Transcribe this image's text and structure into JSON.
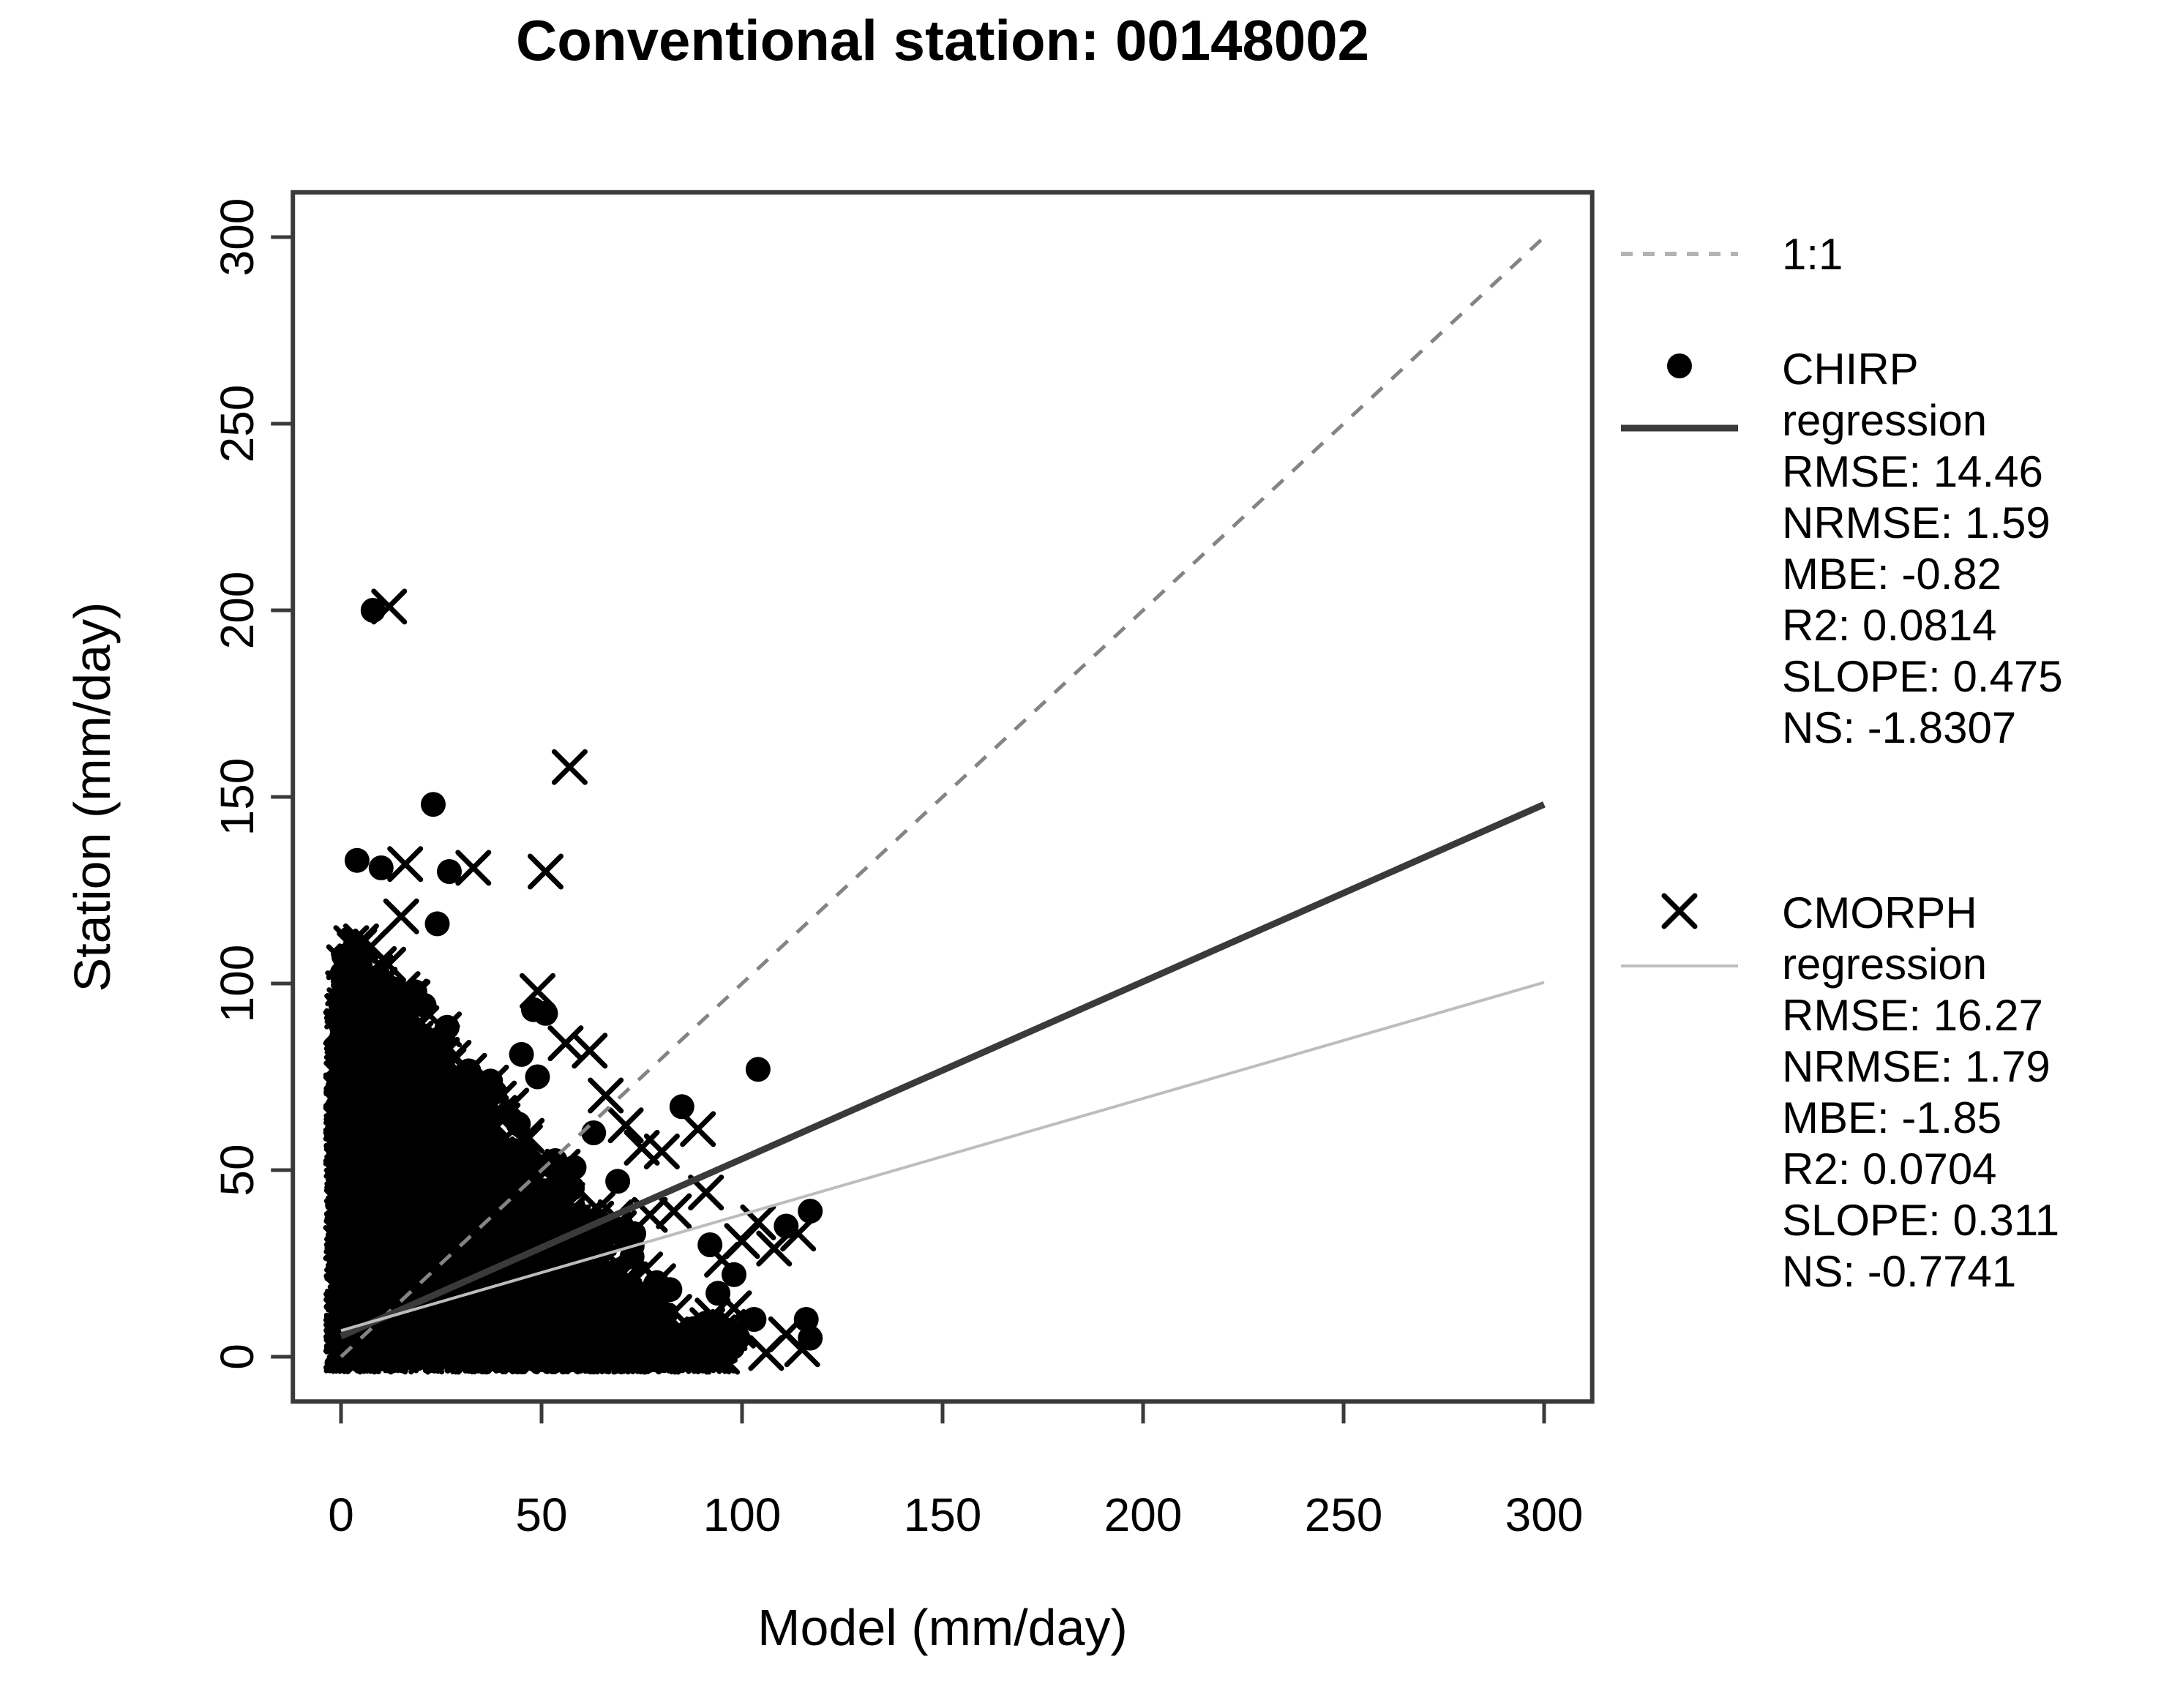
{
  "chart_data": {
    "type": "scatter",
    "title": "Conventional station: 00148002",
    "xlabel": "Model (mm/day)",
    "ylabel": "Station (mm/day)",
    "xlim": [
      -12,
      312
    ],
    "ylim": [
      -12,
      312
    ],
    "x_ticks": [
      0,
      50,
      100,
      150,
      200,
      250,
      300
    ],
    "y_ticks": [
      0,
      50,
      100,
      150,
      200,
      250,
      300
    ],
    "grid": false,
    "legend_position": "right-margin",
    "identity_line": {
      "label": "1:1",
      "from": [
        0,
        0
      ],
      "to": [
        300,
        300
      ],
      "style": "dashed"
    },
    "series": [
      {
        "name": "CHIRP",
        "marker": "dot",
        "stats": {
          "RMSE": 14.46,
          "NRMSE": 1.59,
          "MBE": -0.82,
          "R2": 0.0814,
          "SLOPE": 0.475,
          "NS": -1.8307
        },
        "regression": {
          "slope": 0.475,
          "intercept": 5.5,
          "x_from": 0,
          "x_to": 300,
          "style": "thick-dark"
        },
        "outlier_points": [
          [
            8,
            200
          ],
          [
            23,
            148
          ],
          [
            4,
            133
          ],
          [
            10,
            131
          ],
          [
            27,
            130
          ],
          [
            24,
            116
          ],
          [
            48,
            93
          ],
          [
            51,
            92
          ],
          [
            104,
            77
          ],
          [
            85,
            67
          ],
          [
            63,
            60
          ],
          [
            49,
            75
          ],
          [
            45,
            81
          ],
          [
            69,
            47
          ],
          [
            117,
            39
          ],
          [
            111,
            35
          ],
          [
            73,
            33
          ],
          [
            92,
            30
          ],
          [
            98,
            22
          ],
          [
            82,
            18
          ],
          [
            94,
            17
          ],
          [
            116,
            10
          ],
          [
            103,
            10
          ],
          [
            91,
            9
          ],
          [
            99,
            5
          ],
          [
            117,
            5
          ]
        ]
      },
      {
        "name": "CMORPH",
        "marker": "x",
        "stats": {
          "RMSE": 16.27,
          "NRMSE": 1.79,
          "MBE": -1.85,
          "R2": 0.0704,
          "SLOPE": 0.311,
          "NS": -0.7741
        },
        "regression": {
          "slope": 0.311,
          "intercept": 7,
          "x_from": 0,
          "x_to": 300,
          "style": "thin-light"
        },
        "outlier_points": [
          [
            12,
            201
          ],
          [
            57,
            158
          ],
          [
            16,
            132
          ],
          [
            33,
            131
          ],
          [
            51,
            130
          ],
          [
            15,
            118
          ],
          [
            49,
            98
          ],
          [
            56,
            84
          ],
          [
            62,
            82
          ],
          [
            66,
            70
          ],
          [
            71,
            62
          ],
          [
            89,
            61
          ],
          [
            75,
            56
          ],
          [
            80,
            55
          ],
          [
            91,
            44
          ],
          [
            83,
            39
          ],
          [
            77,
            38
          ],
          [
            104,
            36
          ],
          [
            114,
            33
          ],
          [
            100,
            31
          ],
          [
            108,
            29
          ],
          [
            95,
            26
          ],
          [
            98,
            13
          ],
          [
            99,
            7
          ],
          [
            111,
            6
          ],
          [
            106,
            1
          ],
          [
            95,
            0
          ],
          [
            115,
            2
          ]
        ]
      }
    ],
    "dense_cluster": {
      "description_region": {
        "x": [
          0,
          95
        ],
        "y": [
          0,
          107
        ]
      },
      "seed": 7,
      "points_per_series": 1800,
      "x_exp_scale": 11,
      "x_uniform_fraction": 0.3,
      "x_end": 80,
      "envelope_y0": 100,
      "envelope_x0": 83,
      "envelope_power": 0.95,
      "y_power": 1.35,
      "tail_points": 170,
      "tail_x": [
        30,
        95
      ],
      "tail_y_max": 6,
      "sprinkle_points": 25,
      "halo_points": {
        "CHIRP": 70,
        "CMORPH": 160
      }
    }
  },
  "legend": {
    "items": [
      {
        "id": "one-to-one",
        "sample": "dashed-line",
        "lines": [
          "1:1"
        ]
      },
      {
        "id": "chirp",
        "sample": "dot-and-thick-line",
        "lines": [
          "CHIRP",
          "regression",
          "RMSE: 14.46",
          "NRMSE: 1.59",
          "MBE: -0.82",
          "R2: 0.0814",
          "SLOPE: 0.475",
          "NS: -1.8307"
        ]
      },
      {
        "id": "cmorph",
        "sample": "x-and-thin-line",
        "lines": [
          "CMORPH",
          "regression",
          "RMSE: 16.27",
          "NRMSE: 1.79",
          "MBE: -1.85",
          "R2: 0.0704",
          "SLOPE: 0.311",
          "NS: -0.7741"
        ]
      }
    ]
  },
  "colors": {
    "background": "#ffffff",
    "marker": "#000000",
    "text": "#000000",
    "axis": "#3a3a3a",
    "identity_line": "#848484",
    "legend_dash_sample": "#b3b3b3",
    "chirp_line": "#3a3a3a",
    "cmorph_line": "#bdbdbd"
  }
}
